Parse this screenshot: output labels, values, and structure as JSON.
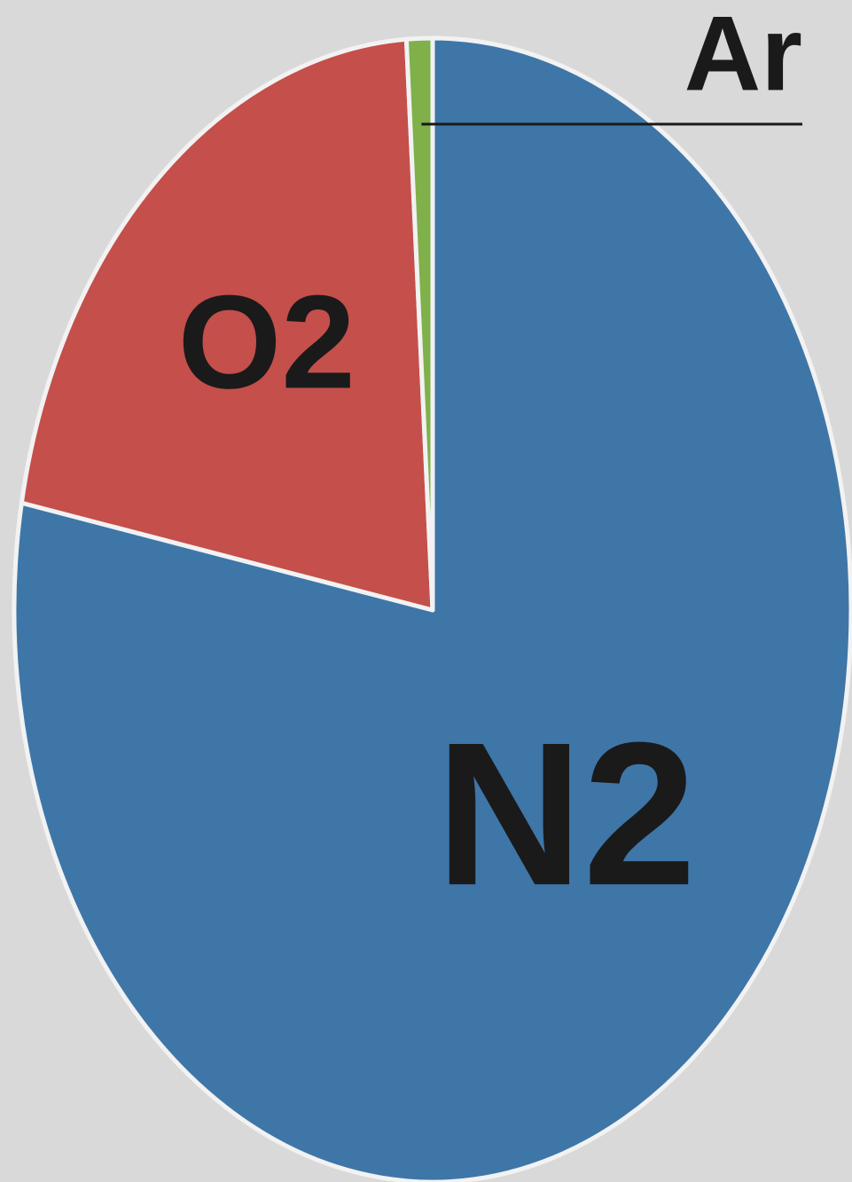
{
  "chart_data": {
    "type": "pie",
    "categories": [
      "N2",
      "O2",
      "Ar"
    ],
    "values": [
      78,
      21,
      1
    ],
    "colors": [
      "#3f76a8",
      "#c44f4b",
      "#7fb04a"
    ]
  }
}
